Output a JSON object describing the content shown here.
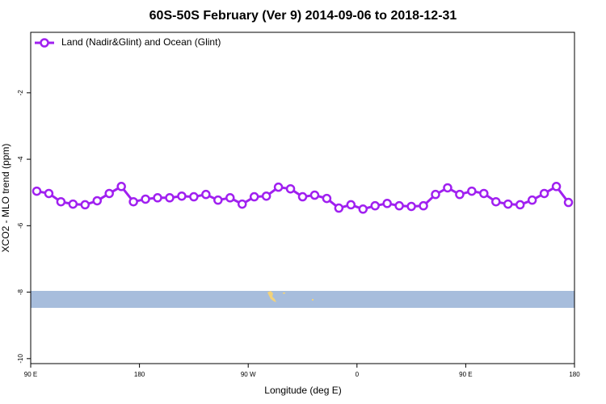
{
  "chart_data": {
    "type": "line",
    "title": "60S-50S February (Ver 9)   2014-09-06 to 2018-12-31",
    "x_label": "Longitude (deg E)",
    "y_label": "XCO2 - MLO trend (ppm)",
    "x": [
      95,
      105,
      115,
      125,
      135,
      145,
      155,
      165,
      175,
      185,
      195,
      205,
      215,
      225,
      235,
      245,
      255,
      265,
      275,
      285,
      295,
      305,
      315,
      325,
      335,
      345,
      355,
      365,
      375,
      385,
      395,
      405,
      415,
      425,
      435,
      445,
      455,
      465,
      475,
      485,
      495,
      505,
      515,
      525,
      535
    ],
    "series": [
      {
        "name": "Land (Nadir&Glint) and Ocean (Glint)",
        "color": "#a020f0",
        "values": [
          -4.96,
          -5.03,
          -5.28,
          -5.35,
          -5.37,
          -5.25,
          -5.03,
          -4.82,
          -5.28,
          -5.2,
          -5.16,
          -5.16,
          -5.11,
          -5.13,
          -5.06,
          -5.23,
          -5.16,
          -5.35,
          -5.13,
          -5.11,
          -4.84,
          -4.89,
          -5.13,
          -5.08,
          -5.18,
          -5.47,
          -5.37,
          -5.5,
          -5.4,
          -5.33,
          -5.4,
          -5.42,
          -5.4,
          -5.06,
          -4.86,
          -5.06,
          -4.96,
          -5.03,
          -5.28,
          -5.35,
          -5.37,
          -5.23,
          -5.03,
          -4.82,
          -5.3
        ]
      }
    ],
    "xlim": [
      90,
      540
    ],
    "xticks": [
      {
        "value": 90,
        "label": "90 E"
      },
      180,
      {
        "value": 270,
        "label": "90 W"
      },
      {
        "value": 360,
        "label": "0"
      },
      {
        "value": 450,
        "label": "90 E"
      },
      180
    ],
    "ylim": [
      -10.15,
      -0.18
    ],
    "yticks": [
      -2,
      -4,
      -6,
      -8,
      -10
    ],
    "legend": "top-left"
  }
}
